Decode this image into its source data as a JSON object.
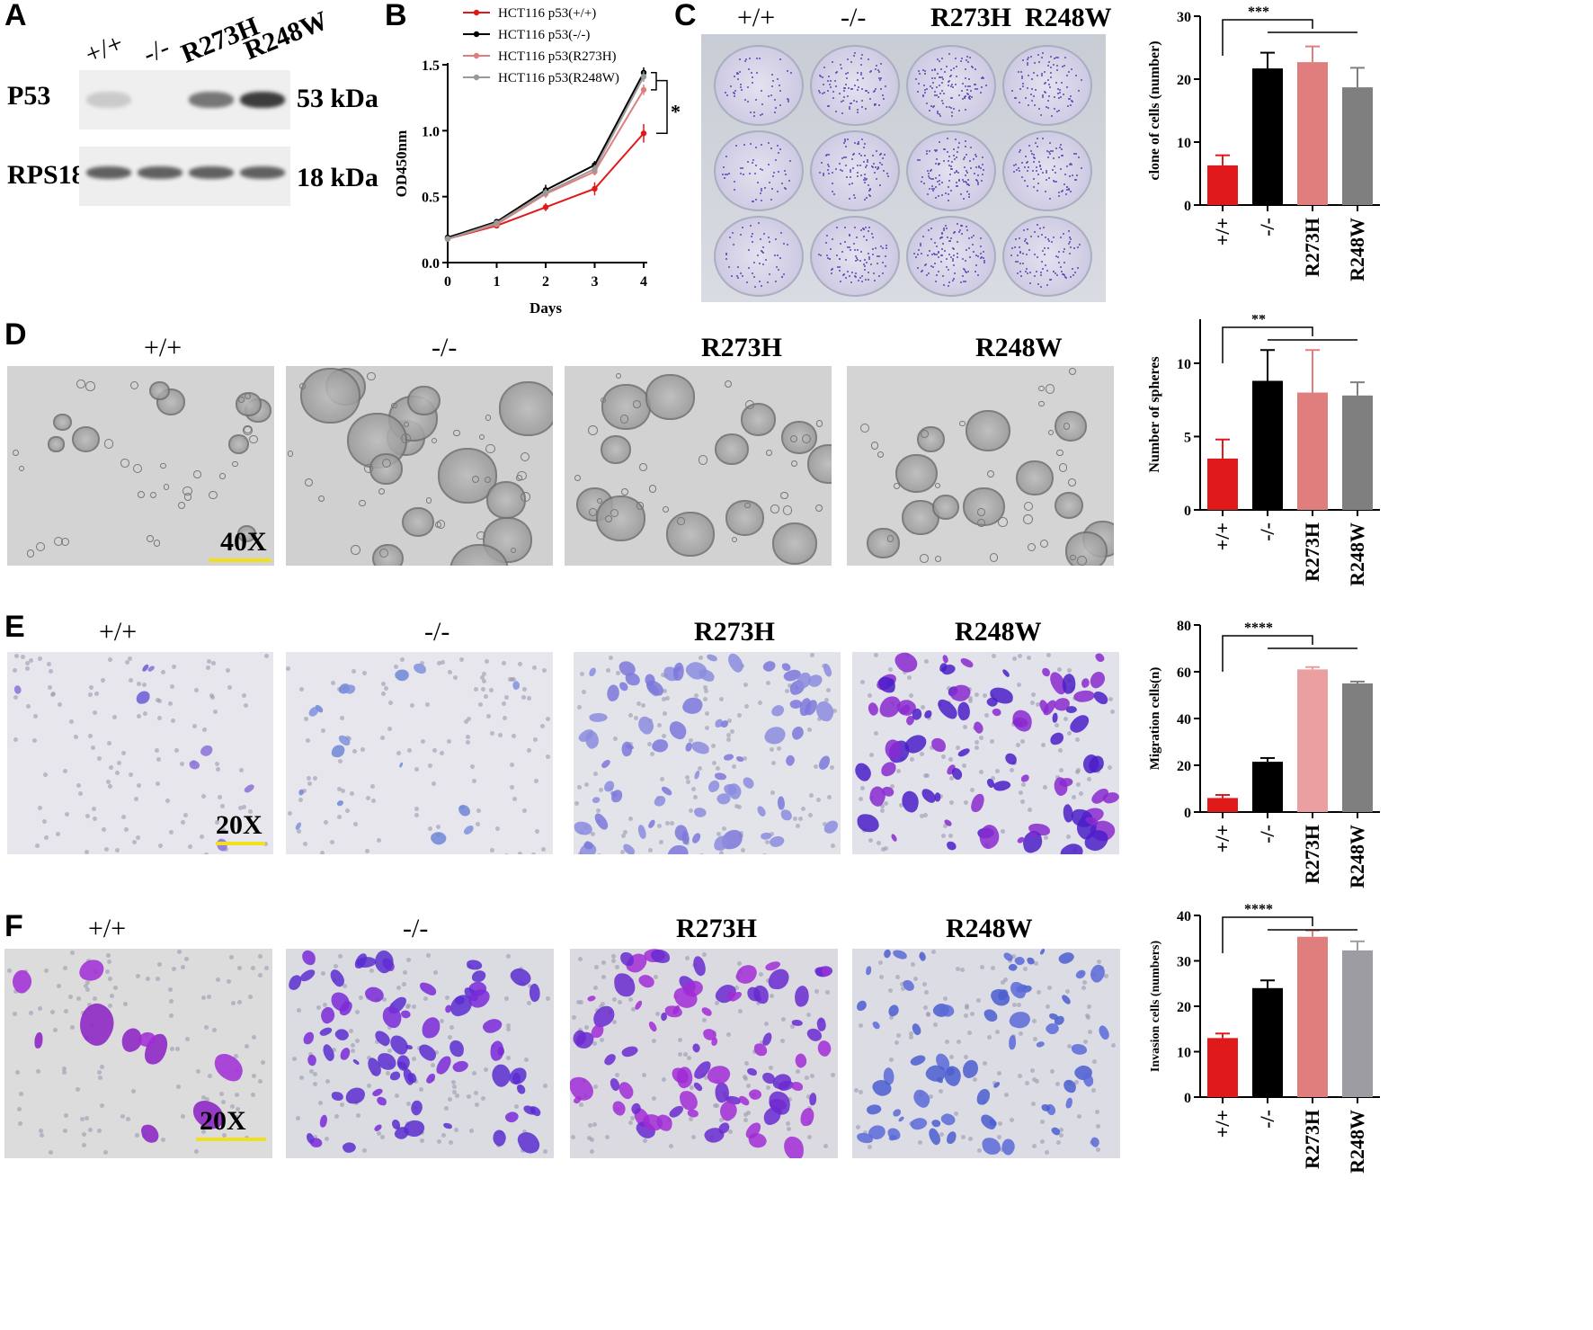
{
  "panels": {
    "A": {
      "letter": "A",
      "lanes": [
        "+/+",
        "-/-",
        "R273H",
        "R248W"
      ],
      "blots": [
        {
          "name": "P53",
          "size": "53 kDa",
          "intensity": [
            0.25,
            0.0,
            0.75,
            1.0
          ]
        },
        {
          "name": "RPS18",
          "size": "18 kDa",
          "intensity": [
            0.85,
            0.85,
            0.85,
            0.85
          ]
        }
      ]
    },
    "B": {
      "letter": "B"
    },
    "C": {
      "letter": "C",
      "plate_labels": [
        "+/+",
        "-/-",
        "R273H",
        "R248W"
      ],
      "plate_density": [
        0.35,
        0.6,
        0.75,
        0.6
      ]
    },
    "D": {
      "letter": "D",
      "labels": [
        "+/+",
        "-/-",
        "R273H",
        "R248W"
      ],
      "magnification": "40X"
    },
    "E": {
      "letter": "E",
      "labels": [
        "+/+",
        "-/-",
        "R273H",
        "R248W"
      ],
      "magnification": "20X"
    },
    "F": {
      "letter": "F",
      "labels": [
        "+/+",
        "-/-",
        "R273H",
        "R248W"
      ],
      "magnification": "20X"
    }
  },
  "colors": {
    "wt": "#e0191b",
    "null": "#000000",
    "r273h": "#e07e7e",
    "r248w": "#808080",
    "stain": "#5a3fc8",
    "stain_pink": "#a12bd6"
  },
  "chart_data": [
    {
      "id": "B",
      "type": "line",
      "xlabel": "Days",
      "ylabel": "OD450nm",
      "x": [
        0,
        1,
        2,
        3,
        4
      ],
      "xlim": [
        0,
        4
      ],
      "ylim": [
        0,
        1.5
      ],
      "xticks": [
        "0",
        "1",
        "2",
        "3",
        "4"
      ],
      "yticks": [
        "0.0",
        "0.5",
        "1.0",
        "1.5"
      ],
      "series": [
        {
          "name": "HCT116 p53(+/+)",
          "color": "#e0191b",
          "values": [
            0.18,
            0.28,
            0.42,
            0.56,
            0.98
          ],
          "err": [
            0.01,
            0.01,
            0.03,
            0.05,
            0.07
          ]
        },
        {
          "name": "HCT116 p53(-/-)",
          "color": "#000000",
          "values": [
            0.19,
            0.31,
            0.55,
            0.74,
            1.44
          ],
          "err": [
            0.01,
            0.01,
            0.04,
            0.03,
            0.04
          ]
        },
        {
          "name": "HCT116 p53(R273H)",
          "color": "#e07e7e",
          "values": [
            0.18,
            0.29,
            0.52,
            0.69,
            1.31
          ],
          "err": [
            0.01,
            0.01,
            0.03,
            0.03,
            0.04
          ]
        },
        {
          "name": "HCT116 p53(R248W)",
          "color": "#999999",
          "values": [
            0.18,
            0.3,
            0.53,
            0.71,
            1.41
          ],
          "err": [
            0.01,
            0.01,
            0.03,
            0.03,
            0.04
          ]
        }
      ],
      "significance": "*",
      "legend": "top-left"
    },
    {
      "id": "C-bar",
      "type": "bar",
      "ylabel": "clone of  cells (number)",
      "categories": [
        "+/+",
        "-/-",
        "R273H",
        "R248W"
      ],
      "values": [
        6.3,
        21.7,
        22.7,
        18.7
      ],
      "err": [
        1.6,
        2.5,
        2.5,
        3.1
      ],
      "colors": [
        "#e0191b",
        "#000000",
        "#e07e7e",
        "#7f7f7f"
      ],
      "ylim": [
        0,
        30
      ],
      "yticks": [
        "0",
        "10",
        "20",
        "30"
      ],
      "significance": "***"
    },
    {
      "id": "D-bar",
      "type": "bar",
      "ylabel": "Number of spheres",
      "categories": [
        "+/+",
        "-/-",
        "R273H",
        "R248W"
      ],
      "values": [
        3.5,
        8.8,
        8.0,
        7.8
      ],
      "err": [
        1.3,
        2.1,
        2.9,
        0.9
      ],
      "colors": [
        "#e0191b",
        "#000000",
        "#e07e7e",
        "#7f7f7f"
      ],
      "ylim": [
        0,
        13
      ],
      "yticks": [
        "0",
        "5",
        "10"
      ],
      "significance": "**"
    },
    {
      "id": "E-bar",
      "type": "bar",
      "ylabel": "Migration cells(n)",
      "categories": [
        "+/+",
        "-/-",
        "R273H",
        "R248W"
      ],
      "values": [
        6,
        21.5,
        61,
        55
      ],
      "err": [
        1.3,
        1.6,
        1.0,
        0.8
      ],
      "colors": [
        "#e0191b",
        "#000000",
        "#eaa0a0",
        "#7f7f7f"
      ],
      "ylim": [
        0,
        80
      ],
      "yticks": [
        "0",
        "20",
        "40",
        "60",
        "80"
      ],
      "significance": "****"
    },
    {
      "id": "F-bar",
      "type": "bar",
      "ylabel": "Invasion cells (numbers)",
      "categories": [
        "+/+",
        "-/-",
        "R273H",
        "R248W"
      ],
      "values": [
        13,
        24,
        35.3,
        32.3
      ],
      "err": [
        1.0,
        1.7,
        1.4,
        2.0
      ],
      "colors": [
        "#e0191b",
        "#000000",
        "#e07e7e",
        "#9c9ca2"
      ],
      "ylim": [
        0,
        40
      ],
      "yticks": [
        "0",
        "10",
        "20",
        "30",
        "40"
      ],
      "significance": "****"
    }
  ]
}
